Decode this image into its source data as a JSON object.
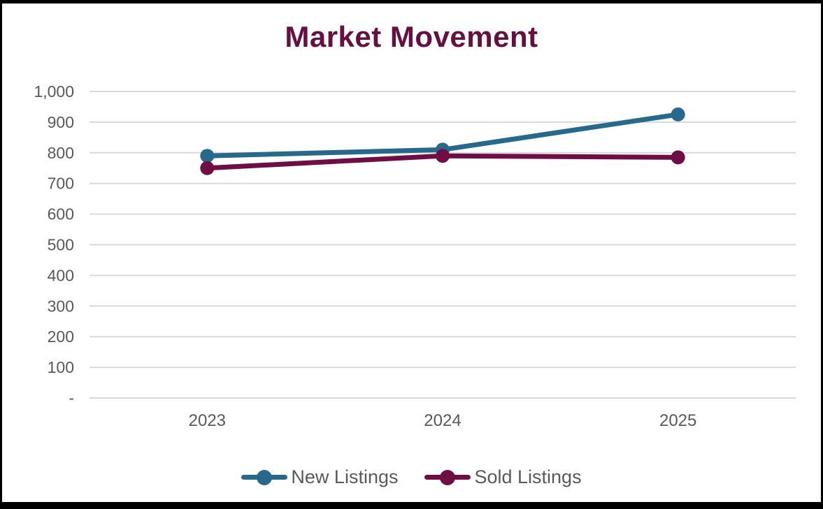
{
  "page": {
    "background": "#ffffff",
    "frame_color": "#000000"
  },
  "colors": {
    "title": "#66103f",
    "axis_text": "#595959",
    "gridline": "#d9d9d9",
    "legend_text": "#595959"
  },
  "chart_data": {
    "type": "line",
    "title": "Market Movement",
    "categories": [
      "2023",
      "2024",
      "2025"
    ],
    "series": [
      {
        "name": "New Listings",
        "color": "#26698c",
        "values": [
          790,
          810,
          925
        ]
      },
      {
        "name": "Sold Listings",
        "color": "#6e0e44",
        "values": [
          750,
          790,
          785
        ]
      }
    ],
    "ylim": [
      0,
      1000
    ],
    "ytick_step": 100,
    "ytick_labels": [
      "-",
      "100",
      "200",
      "300",
      "400",
      "500",
      "600",
      "700",
      "800",
      "900",
      "1,000"
    ],
    "xlabel": "",
    "ylabel": "",
    "grid": "horizontal",
    "legend_position": "bottom",
    "marker": "circle"
  }
}
